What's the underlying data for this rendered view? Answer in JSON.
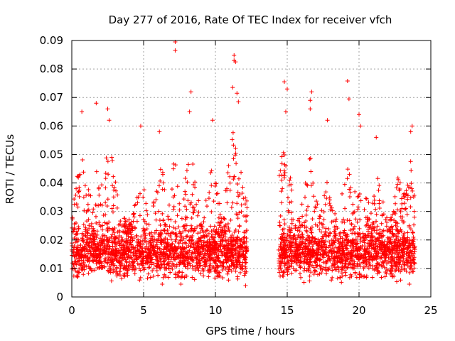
{
  "chart_data": {
    "type": "scatter",
    "title": "Day 277 of 2016, Rate Of TEC Index for receiver vfch",
    "xlabel": "GPS time / hours",
    "ylabel": "ROTI / TECUs",
    "xlim": [
      0,
      25
    ],
    "ylim": [
      0,
      0.09
    ],
    "x_ticks": [
      0,
      5,
      10,
      15,
      20,
      25
    ],
    "x_tick_labels": [
      "0",
      "5",
      "10",
      "15",
      "20",
      "25"
    ],
    "y_ticks": [
      0,
      0.01,
      0.02,
      0.03,
      0.04,
      0.05,
      0.06,
      0.07,
      0.08,
      0.09
    ],
    "y_tick_labels": [
      "0",
      "0.01",
      "0.02",
      "0.03",
      "0.04",
      "0.05",
      "0.06",
      "0.07",
      "0.08",
      "0.09"
    ],
    "grid": true,
    "marker": "+",
    "color": "#ff0000",
    "segments": [
      {
        "start": 0.0,
        "end": 12.2
      },
      {
        "start": 14.4,
        "end": 23.9
      }
    ],
    "notable_points": [
      {
        "x": 7.2,
        "y": 0.0895
      },
      {
        "x": 7.2,
        "y": 0.0865
      },
      {
        "x": 11.3,
        "y": 0.0848
      },
      {
        "x": 11.3,
        "y": 0.083
      },
      {
        "x": 11.4,
        "y": 0.0825
      },
      {
        "x": 11.2,
        "y": 0.0735
      },
      {
        "x": 11.5,
        "y": 0.0715
      },
      {
        "x": 11.6,
        "y": 0.0685
      },
      {
        "x": 14.8,
        "y": 0.0755
      },
      {
        "x": 15.0,
        "y": 0.073
      },
      {
        "x": 14.9,
        "y": 0.065
      },
      {
        "x": 16.7,
        "y": 0.072
      },
      {
        "x": 16.6,
        "y": 0.069
      },
      {
        "x": 16.6,
        "y": 0.066
      },
      {
        "x": 19.2,
        "y": 0.0758
      },
      {
        "x": 19.3,
        "y": 0.0695
      },
      {
        "x": 1.7,
        "y": 0.068
      },
      {
        "x": 2.5,
        "y": 0.066
      },
      {
        "x": 8.3,
        "y": 0.072
      },
      {
        "x": 8.2,
        "y": 0.065
      },
      {
        "x": 2.6,
        "y": 0.062
      },
      {
        "x": 20.0,
        "y": 0.064
      },
      {
        "x": 20.1,
        "y": 0.06
      },
      {
        "x": 23.7,
        "y": 0.06
      },
      {
        "x": 23.6,
        "y": 0.058
      },
      {
        "x": 21.2,
        "y": 0.056
      },
      {
        "x": 17.8,
        "y": 0.062
      },
      {
        "x": 0.7,
        "y": 0.065
      },
      {
        "x": 9.8,
        "y": 0.062
      },
      {
        "x": 4.8,
        "y": 0.06
      },
      {
        "x": 6.1,
        "y": 0.058
      },
      {
        "x": 12.1,
        "y": 0.004
      },
      {
        "x": 23.5,
        "y": 0.0045
      },
      {
        "x": 6.3,
        "y": 0.0045
      },
      {
        "x": 7.6,
        "y": 0.0045
      }
    ]
  }
}
